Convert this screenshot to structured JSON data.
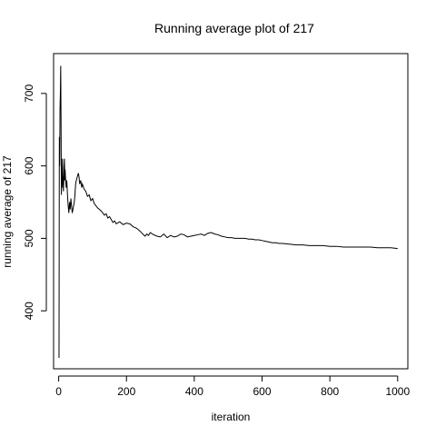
{
  "chart_data": {
    "type": "line",
    "title": "Running average plot of 217",
    "xlabel": "iteration",
    "ylabel": "running average of 217",
    "xlim": [
      -15,
      1030
    ],
    "ylim": [
      320,
      755
    ],
    "xticks": [
      0,
      200,
      400,
      600,
      800,
      1000
    ],
    "yticks": [
      400,
      500,
      600,
      700
    ],
    "grid": false,
    "legend": "none",
    "line_color": "#000000",
    "series": [
      {
        "x": [
          1,
          2,
          3,
          4,
          5,
          6,
          7,
          8,
          9,
          10,
          11,
          12,
          13,
          14,
          15,
          16,
          17,
          18,
          19,
          20,
          22,
          24,
          26,
          28,
          30,
          32,
          34,
          36,
          38,
          40,
          42,
          44,
          46,
          48,
          50,
          52,
          55,
          58,
          60,
          62,
          65,
          68,
          70,
          75,
          80,
          85,
          90,
          95,
          100,
          105,
          110,
          115,
          120,
          125,
          130,
          135,
          140,
          145,
          150,
          155,
          160,
          165,
          170,
          180,
          190,
          200,
          210,
          220,
          230,
          240,
          250,
          255,
          260,
          265,
          270,
          280,
          290,
          300,
          310,
          320,
          330,
          340,
          350,
          360,
          370,
          380,
          390,
          400,
          410,
          420,
          430,
          440,
          450,
          460,
          470,
          480,
          490,
          500,
          510,
          520,
          530,
          540,
          550,
          560,
          570,
          580,
          590,
          600,
          610,
          620,
          630,
          640,
          650,
          660,
          680,
          700,
          720,
          740,
          760,
          780,
          800,
          820,
          840,
          860,
          880,
          900,
          920,
          940,
          960,
          980,
          1000
        ],
        "values": [
          335,
          640,
          600,
          680,
          700,
          738,
          660,
          560,
          600,
          570,
          610,
          590,
          575,
          565,
          580,
          600,
          610,
          580,
          595,
          585,
          570,
          580,
          560,
          545,
          535,
          550,
          540,
          555,
          545,
          535,
          540,
          545,
          550,
          560,
          575,
          580,
          585,
          590,
          585,
          575,
          580,
          570,
          575,
          568,
          565,
          558,
          560,
          552,
          555,
          548,
          545,
          542,
          540,
          538,
          535,
          532,
          534,
          528,
          530,
          526,
          522,
          524,
          520,
          523,
          519,
          521,
          520,
          516,
          514,
          510,
          505,
          503,
          506,
          504,
          508,
          505,
          503,
          502,
          506,
          501,
          504,
          502,
          503,
          506,
          505,
          502,
          503,
          504,
          505,
          506,
          504,
          507,
          508,
          506,
          505,
          503,
          502,
          501,
          501,
          500,
          500,
          500,
          500,
          499,
          499,
          498,
          498,
          497,
          496,
          495,
          494,
          494,
          493,
          493,
          492,
          491,
          491,
          490,
          490,
          490,
          489,
          489,
          488,
          488,
          488,
          488,
          488,
          487,
          487,
          487,
          486
        ]
      }
    ]
  }
}
